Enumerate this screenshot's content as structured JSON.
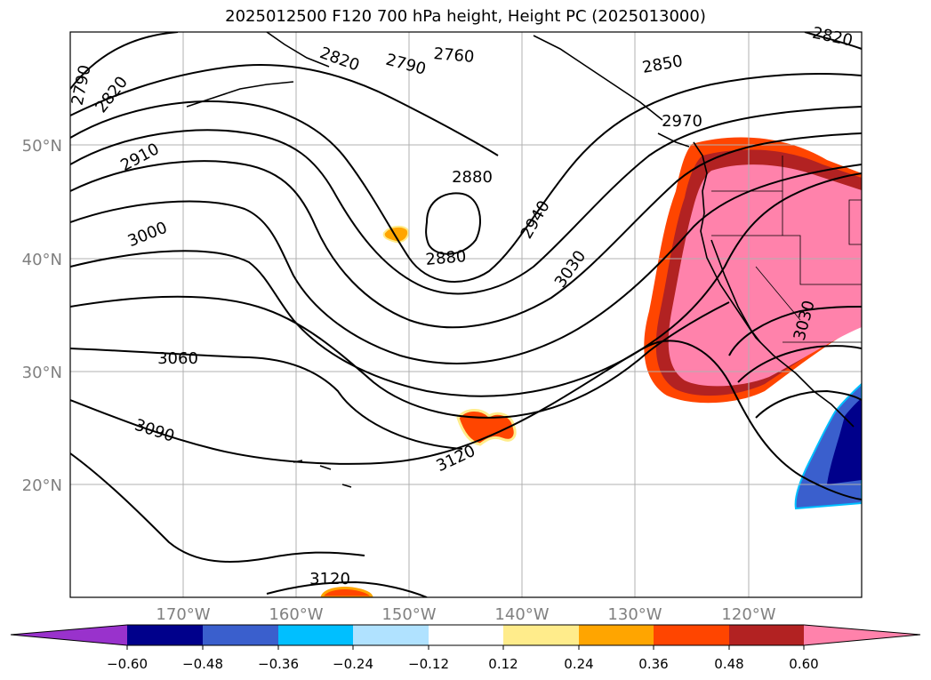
{
  "title": "2025012500 F120 700 hPa height, Height PC (2025013000)",
  "lat_labels": [
    "50°N",
    "40°N",
    "30°N",
    "20°N"
  ],
  "lon_labels": [
    "170°W",
    "160°W",
    "150°W",
    "140°W",
    "130°W",
    "120°W"
  ],
  "contour_labels": [
    {
      "text": "2790"
    },
    {
      "text": "2820"
    },
    {
      "text": "2910"
    },
    {
      "text": "3000"
    },
    {
      "text": "3060"
    },
    {
      "text": "3090"
    },
    {
      "text": "2820"
    },
    {
      "text": "2790"
    },
    {
      "text": "2760"
    },
    {
      "text": "2850"
    },
    {
      "text": "2970"
    },
    {
      "text": "2880"
    },
    {
      "text": "2880"
    },
    {
      "text": "2940"
    },
    {
      "text": "3030"
    },
    {
      "text": "3030"
    },
    {
      "text": "3120"
    },
    {
      "text": "3120"
    },
    {
      "text": "2820"
    }
  ],
  "colorbar": {
    "ticks": [
      "−0.60",
      "−0.48",
      "−0.36",
      "−0.24",
      "−0.12",
      "0.12",
      "0.24",
      "0.36",
      "0.48",
      "0.60"
    ],
    "colors": [
      "#9932cc",
      "#00008b",
      "#3a5fcd",
      "#00bfff",
      "#b0e2ff",
      "#ffffff",
      "#ffec8b",
      "#ffa500",
      "#ff4500",
      "#b22222",
      "#ff82ab"
    ]
  }
}
